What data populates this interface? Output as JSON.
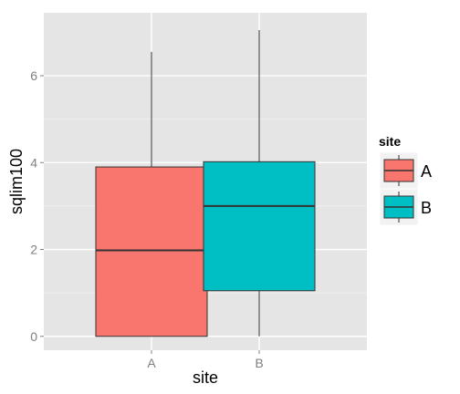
{
  "chart_data": {
    "type": "boxplot",
    "xlabel": "site",
    "ylabel": "sqlim100",
    "categories": [
      "A",
      "B"
    ],
    "boxes": [
      {
        "category": "A",
        "min": 0,
        "q1": 0,
        "median": 1.98,
        "q3": 3.9,
        "max": 6.55,
        "color": "#F8766D"
      },
      {
        "category": "B",
        "min": 0,
        "q1": 1.05,
        "median": 3.0,
        "q3": 4.02,
        "max": 7.05,
        "color": "#00BFC4"
      }
    ],
    "ylim": [
      -0.32,
      7.45
    ],
    "yticks": [
      0,
      2,
      4,
      6
    ],
    "grid": true,
    "legend": {
      "title": "site",
      "placement": "right",
      "entries": [
        {
          "label": "A",
          "color": "#F8766D"
        },
        {
          "label": "B",
          "color": "#00BFC4"
        }
      ]
    }
  }
}
